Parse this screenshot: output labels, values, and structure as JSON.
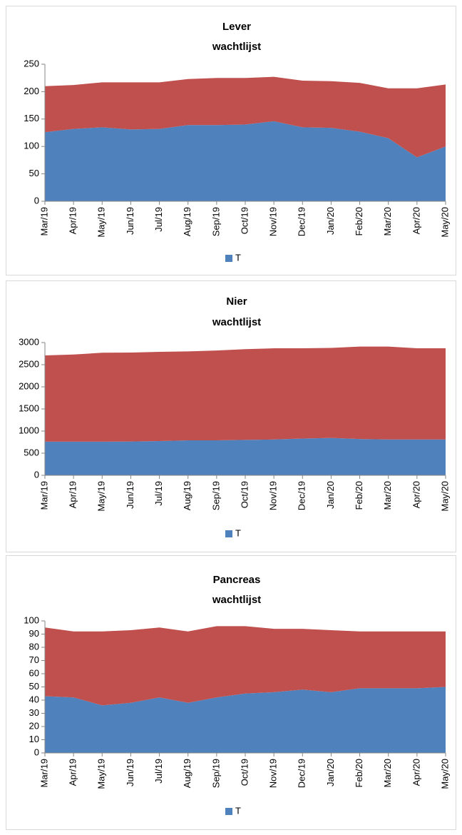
{
  "chart_data": [
    {
      "type": "area",
      "title": "Lever",
      "subtitle": "wachtlijst",
      "categories": [
        "Mar/19",
        "Apr/19",
        "May/19",
        "Jun/19",
        "Jul/19",
        "Aug/19",
        "Sep/19",
        "Oct/19",
        "Nov/19",
        "Dec/19",
        "Jan/20",
        "Feb/20",
        "Mar/20",
        "Apr/20",
        "May/20"
      ],
      "series": [
        {
          "name": "T",
          "color": "#4f81bd",
          "values": [
            126,
            132,
            135,
            131,
            132,
            139,
            139,
            140,
            146,
            135,
            134,
            127,
            115,
            80,
            100
          ]
        },
        {
          "color": "#c0504d",
          "values": [
            84,
            80,
            82,
            86,
            85,
            84,
            86,
            85,
            81,
            85,
            85,
            89,
            91,
            126,
            113
          ]
        }
      ],
      "ylim": [
        0,
        250
      ],
      "yticks": [
        0,
        50,
        100,
        150,
        200,
        250
      ],
      "stacked": true,
      "grid": false,
      "legend": "bottom"
    },
    {
      "type": "area",
      "title": "Nier",
      "subtitle": "wachtlijst",
      "categories": [
        "Mar/19",
        "Apr/19",
        "May/19",
        "Jun/19",
        "Jul/19",
        "Aug/19",
        "Sep/19",
        "Oct/19",
        "Nov/19",
        "Dec/19",
        "Jan/20",
        "Feb/20",
        "Mar/20",
        "Apr/20",
        "May/20"
      ],
      "series": [
        {
          "name": "T",
          "color": "#4f81bd",
          "values": [
            760,
            760,
            760,
            765,
            775,
            790,
            790,
            800,
            810,
            830,
            845,
            820,
            810,
            810,
            810
          ]
        },
        {
          "color": "#c0504d",
          "values": [
            1950,
            1970,
            2010,
            2010,
            2015,
            2010,
            2030,
            2050,
            2060,
            2040,
            2035,
            2090,
            2100,
            2060,
            2060
          ]
        }
      ],
      "ylim": [
        0,
        3000
      ],
      "yticks": [
        0,
        500,
        1000,
        1500,
        2000,
        2500,
        3000
      ],
      "stacked": true,
      "grid": false,
      "legend": "bottom"
    },
    {
      "type": "area",
      "title": "Pancreas",
      "subtitle": "wachtlijst",
      "categories": [
        "Mar/19",
        "Apr/19",
        "May/19",
        "Jun/19",
        "Jul/19",
        "Aug/19",
        "Sep/19",
        "Oct/19",
        "Nov/19",
        "Dec/19",
        "Jan/20",
        "Feb/20",
        "Mar/20",
        "Apr/20",
        "May/20"
      ],
      "series": [
        {
          "name": "T",
          "color": "#4f81bd",
          "values": [
            43,
            42,
            36,
            38,
            42,
            38,
            42,
            45,
            46,
            48,
            46,
            49,
            49,
            49,
            50
          ]
        },
        {
          "color": "#c0504d",
          "values": [
            52,
            50,
            56,
            55,
            53,
            54,
            54,
            51,
            48,
            46,
            47,
            43,
            43,
            43,
            42
          ]
        }
      ],
      "ylim": [
        0,
        100
      ],
      "yticks": [
        0,
        10,
        20,
        30,
        40,
        50,
        60,
        70,
        80,
        90,
        100
      ],
      "stacked": true,
      "grid": false,
      "legend": "bottom"
    }
  ]
}
